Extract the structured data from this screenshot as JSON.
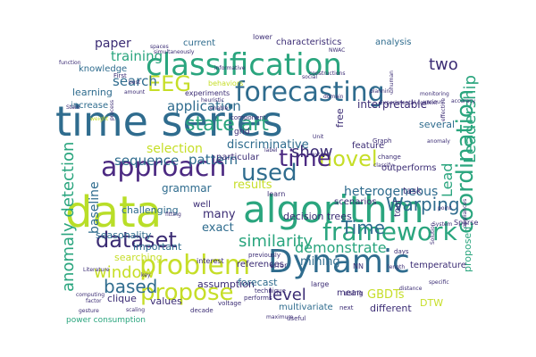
{
  "background_color": "#ffffff",
  "palette": {
    "navy": "#3b2c74",
    "purple": "#4c2a82",
    "blue": "#2f6c8e",
    "teal": "#24868e",
    "green": "#2aa57e",
    "lime": "#8fd14f",
    "yellow": "#c6de28"
  },
  "words": [
    {
      "text": "time series",
      "color": "#2f6c8e"
    },
    {
      "text": "classification",
      "color": "#2aa57e"
    },
    {
      "text": "data",
      "color": "#b9de28"
    },
    {
      "text": "algorithm",
      "color": "#2aa57e"
    },
    {
      "text": "Dynamic",
      "color": "#2f6c8e"
    },
    {
      "text": "problem",
      "color": "#c6de28"
    },
    {
      "text": "approach",
      "color": "#4c2a82"
    },
    {
      "text": "framework",
      "color": "#2aa57e"
    },
    {
      "text": "forecasting",
      "color": "#2f6c8e"
    },
    {
      "text": "propose",
      "color": "#c6de28"
    },
    {
      "text": "EEG",
      "color": "#c6de28"
    },
    {
      "text": "used",
      "color": "#2f6c8e"
    },
    {
      "text": "novel",
      "color": "#c6de28"
    },
    {
      "text": "time",
      "color": "#4c2a82"
    },
    {
      "text": "coordination",
      "color": "#2aa57e"
    },
    {
      "text": "dataset",
      "color": "#3b2c74"
    },
    {
      "text": "Warping",
      "color": "#2f6c8e"
    },
    {
      "text": "Time",
      "color": "#2f6c8e"
    },
    {
      "text": "window",
      "color": "#c6de28"
    },
    {
      "text": "similarity",
      "color": "#2aa57e"
    },
    {
      "text": "anomaly detection",
      "color": "#2aa57e"
    },
    {
      "text": "Leadership",
      "color": "#2aa57e"
    },
    {
      "text": "state art",
      "color": "#2aa57e"
    },
    {
      "text": "demonstrate",
      "color": "#2aa57e"
    },
    {
      "text": "based",
      "color": "#2f6c8e"
    },
    {
      "text": "level",
      "color": "#3b2c74"
    },
    {
      "text": "show",
      "color": "#3b2c74"
    },
    {
      "text": "paper",
      "color": "#3b2c74"
    },
    {
      "text": "two",
      "color": "#3b2c74"
    },
    {
      "text": "search",
      "color": "#2f6c8e"
    },
    {
      "text": "training",
      "color": "#2aa57e"
    },
    {
      "text": "application",
      "color": "#2f6c8e"
    },
    {
      "text": "sequence",
      "color": "#2f6c8e"
    },
    {
      "text": "baseline",
      "color": "#2f6c8e"
    },
    {
      "text": "selection",
      "color": "#c6de28"
    },
    {
      "text": "pattern",
      "color": "#2f6c8e"
    },
    {
      "text": "discriminative",
      "color": "#2f6c8e"
    },
    {
      "text": "heterogeneous",
      "color": "#2f6c8e"
    },
    {
      "text": "mining",
      "color": "#2f6c8e"
    },
    {
      "text": "exact",
      "color": "#2f6c8e"
    },
    {
      "text": "many",
      "color": "#3b2c74"
    },
    {
      "text": "results",
      "color": "#c6de28"
    },
    {
      "text": "GBDTs",
      "color": "#c6de28"
    },
    {
      "text": "Lead",
      "color": "#2aa57e"
    },
    {
      "text": "interpretable",
      "color": "#3b2c74"
    },
    {
      "text": "learning",
      "color": "#2f6c8e"
    },
    {
      "text": "knowledge",
      "color": "#2f6c8e"
    },
    {
      "text": "increase",
      "color": "#2f6c8e"
    },
    {
      "text": "current",
      "color": "#2f6c8e"
    },
    {
      "text": "characteristics",
      "color": "#3b2c74"
    },
    {
      "text": "analysis",
      "color": "#2f6c8e"
    },
    {
      "text": "decision trees",
      "color": "#3b2c74"
    },
    {
      "text": "grammar",
      "color": "#2f6c8e"
    },
    {
      "text": "challenging",
      "color": "#2f6c8e"
    },
    {
      "text": "seasonality",
      "color": "#2f6c8e"
    },
    {
      "text": "important",
      "color": "#2f6c8e"
    },
    {
      "text": "searching",
      "color": "#c6de28"
    },
    {
      "text": "clique",
      "color": "#3b2c74"
    },
    {
      "text": "assumption",
      "color": "#3b2c74"
    },
    {
      "text": "values",
      "color": "#3b2c74"
    },
    {
      "text": "forecast",
      "color": "#2f6c8e"
    },
    {
      "text": "multivariate",
      "color": "#2f6c8e"
    },
    {
      "text": "different",
      "color": "#3b2c74"
    },
    {
      "text": "mean",
      "color": "#3b2c74"
    },
    {
      "text": "DTW",
      "color": "#c6de28"
    },
    {
      "text": "proposed",
      "color": "#2aa57e"
    },
    {
      "text": "temperature",
      "color": "#3b2c74"
    },
    {
      "text": "feature",
      "color": "#3b2c74"
    },
    {
      "text": "outperforms",
      "color": "#3b2c74"
    },
    {
      "text": "scenarios",
      "color": "#3b2c74"
    },
    {
      "text": "references",
      "color": "#3b2c74"
    },
    {
      "text": "particular",
      "color": "#3b2c74"
    },
    {
      "text": "well",
      "color": "#3b2c74"
    },
    {
      "text": "task",
      "color": "#3b2c74"
    },
    {
      "text": "tool",
      "color": "#3b2c74"
    },
    {
      "text": "power consumption",
      "color": "#2aa57e"
    },
    {
      "text": "experiments",
      "color": "#3b2c74"
    },
    {
      "text": "grid",
      "color": "#3b2c74"
    },
    {
      "text": "behaviors",
      "color": "#c6de28"
    },
    {
      "text": "lower",
      "color": "#3b2c74"
    },
    {
      "text": "free",
      "color": "#3b2c74"
    },
    {
      "text": "error",
      "color": "#3b2c74"
    },
    {
      "text": "interest",
      "color": "#3b2c74"
    },
    {
      "text": "previously",
      "color": "#3b2c74"
    },
    {
      "text": "learn",
      "color": "#3b2c74"
    },
    {
      "text": "large",
      "color": "#3b2c74"
    },
    {
      "text": "using",
      "color": "#3b2c74"
    },
    {
      "text": "NN",
      "color": "#3b2c74"
    },
    {
      "text": "Sparse",
      "color": "#3b2c74"
    },
    {
      "text": "days",
      "color": "#3b2c74"
    },
    {
      "text": "next",
      "color": "#3b2c74"
    },
    {
      "text": "useful",
      "color": "#3b2c74"
    },
    {
      "text": "decade",
      "color": "#3b2c74"
    },
    {
      "text": "technique",
      "color": "#3b2c74"
    },
    {
      "text": "performs",
      "color": "#3b2c74"
    },
    {
      "text": "voltage",
      "color": "#3b2c74"
    },
    {
      "text": "several",
      "color": "#2f6c8e"
    },
    {
      "text": "component",
      "color": "#3b2c74"
    },
    {
      "text": "best",
      "color": "#3b2c74"
    },
    {
      "text": "First",
      "color": "#3b2c74"
    },
    {
      "text": "amount",
      "color": "#3b2c74"
    },
    {
      "text": "process",
      "color": "#3b2c74"
    },
    {
      "text": "Graph",
      "color": "#3b2c74"
    },
    {
      "text": "change",
      "color": "#3b2c74"
    },
    {
      "text": "Experimental context",
      "color": "#3b2c74"
    },
    {
      "text": "domain",
      "color": "#3b2c74"
    },
    {
      "text": "human",
      "color": "#3b2c74"
    },
    {
      "text": "planning",
      "color": "#3b2c74"
    },
    {
      "text": "various",
      "color": "#3b2c74"
    },
    {
      "text": "monitoring",
      "color": "#3b2c74"
    },
    {
      "text": "point",
      "color": "#3b2c74"
    },
    {
      "text": "System",
      "color": "#3b2c74"
    },
    {
      "text": "appliances",
      "color": "#3b2c74"
    },
    {
      "text": "length",
      "color": "#3b2c74"
    },
    {
      "text": "distance",
      "color": "#3b2c74"
    },
    {
      "text": "fitting",
      "color": "#3b2c74"
    },
    {
      "text": "computing",
      "color": "#3b2c74"
    },
    {
      "text": "Literature",
      "color": "#3b2c74"
    },
    {
      "text": "factor",
      "color": "#3b2c74"
    },
    {
      "text": "key",
      "color": "#3b2c74"
    },
    {
      "text": "scaling",
      "color": "#3b2c74"
    },
    {
      "text": "maximum",
      "color": "#3b2c74"
    },
    {
      "text": "gesture",
      "color": "#3b2c74"
    },
    {
      "text": "enable",
      "color": "#3b2c74"
    },
    {
      "text": "heuristic",
      "color": "#3b2c74"
    },
    {
      "text": "spaces",
      "color": "#3b2c74"
    },
    {
      "text": "function",
      "color": "#3b2c74"
    },
    {
      "text": "simultaneously",
      "color": "#3b2c74"
    },
    {
      "text": "social",
      "color": "#3b2c74"
    },
    {
      "text": "constructions",
      "color": "#3b2c74"
    },
    {
      "text": "Stain",
      "color": "#3b2c74"
    },
    {
      "text": "Solution",
      "color": "#3b2c74"
    },
    {
      "text": "weight",
      "color": "#c6de28"
    },
    {
      "text": "informative",
      "color": "#3b2c74"
    },
    {
      "text": "classify",
      "color": "#3b2c74"
    },
    {
      "text": "extend",
      "color": "#3b2c74"
    },
    {
      "text": "label",
      "color": "#3b2c74"
    },
    {
      "text": "Unit",
      "color": "#3b2c74"
    },
    {
      "text": "NWAC",
      "color": "#3b2c74"
    },
    {
      "text": "anomaly",
      "color": "#3b2c74"
    },
    {
      "text": "accuracy",
      "color": "#3b2c74"
    },
    {
      "text": "effective",
      "color": "#3b2c74"
    },
    {
      "text": "specific",
      "color": "#3b2c74"
    }
  ]
}
